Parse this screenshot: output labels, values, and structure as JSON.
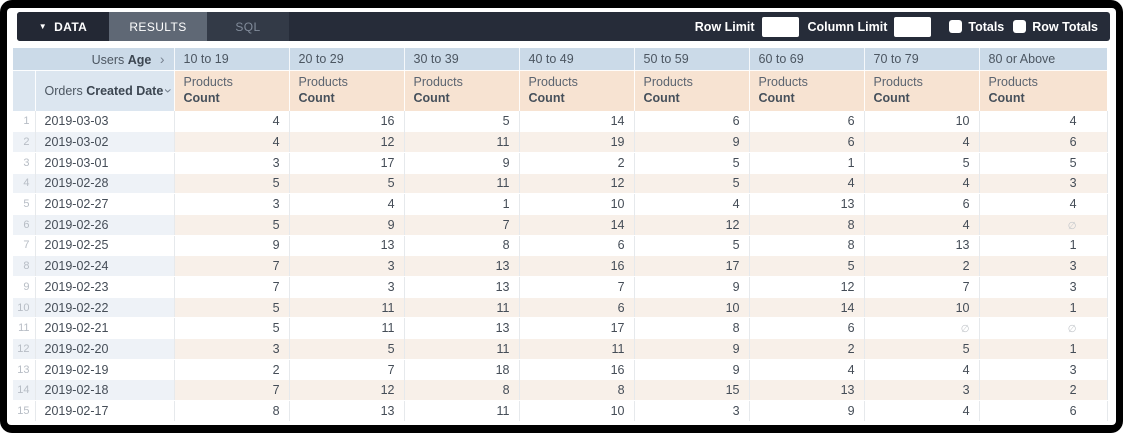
{
  "toolbar": {
    "data_tab": "DATA",
    "results_tab": "RESULTS",
    "sql_tab": "SQL",
    "row_limit_label": "Row Limit",
    "row_limit_value": "",
    "column_limit_label": "Column Limit",
    "column_limit_value": "",
    "totals_label": "Totals",
    "row_totals_label": "Row Totals",
    "totals_checked": false,
    "row_totals_checked": false
  },
  "colors": {
    "toolbar_bg": "#262c39",
    "results_tab_bg": "#5f6875",
    "pivot_header_bg": "#cbdae8",
    "dimension_header_bg": "#dce6f0",
    "measure_header_bg": "#f7e3d2",
    "even_row_dim_bg": "#eef2f7",
    "even_row_val_bg": "#f8f0e9"
  },
  "table": {
    "pivot": {
      "prefix": "Users",
      "field": "Age"
    },
    "row_dim": {
      "prefix": "Orders",
      "field": "Created Date"
    },
    "measure": {
      "prefix": "Products",
      "field": "Count"
    },
    "null_symbol": "∅",
    "age_buckets": [
      "10 to 19",
      "20 to 29",
      "30 to 39",
      "40 to 49",
      "50 to 59",
      "60 to 69",
      "70 to 79",
      "80 or Above"
    ],
    "rows": [
      {
        "n": 1,
        "date": "2019-03-03",
        "values": [
          4,
          16,
          5,
          14,
          6,
          6,
          10,
          4
        ]
      },
      {
        "n": 2,
        "date": "2019-03-02",
        "values": [
          4,
          12,
          11,
          19,
          9,
          6,
          4,
          6
        ]
      },
      {
        "n": 3,
        "date": "2019-03-01",
        "values": [
          3,
          17,
          9,
          2,
          5,
          1,
          5,
          5
        ]
      },
      {
        "n": 4,
        "date": "2019-02-28",
        "values": [
          5,
          5,
          11,
          12,
          5,
          4,
          4,
          3
        ]
      },
      {
        "n": 5,
        "date": "2019-02-27",
        "values": [
          3,
          4,
          1,
          10,
          4,
          13,
          6,
          4
        ]
      },
      {
        "n": 6,
        "date": "2019-02-26",
        "values": [
          5,
          9,
          7,
          14,
          12,
          8,
          4,
          null
        ]
      },
      {
        "n": 7,
        "date": "2019-02-25",
        "values": [
          9,
          13,
          8,
          6,
          5,
          8,
          13,
          1
        ]
      },
      {
        "n": 8,
        "date": "2019-02-24",
        "values": [
          7,
          3,
          13,
          16,
          17,
          5,
          2,
          3
        ]
      },
      {
        "n": 9,
        "date": "2019-02-23",
        "values": [
          7,
          3,
          13,
          7,
          9,
          12,
          7,
          3
        ]
      },
      {
        "n": 10,
        "date": "2019-02-22",
        "values": [
          5,
          11,
          11,
          6,
          10,
          14,
          10,
          1
        ]
      },
      {
        "n": 11,
        "date": "2019-02-21",
        "values": [
          5,
          11,
          13,
          17,
          8,
          6,
          null,
          null
        ]
      },
      {
        "n": 12,
        "date": "2019-02-20",
        "values": [
          3,
          5,
          11,
          11,
          9,
          2,
          5,
          1
        ]
      },
      {
        "n": 13,
        "date": "2019-02-19",
        "values": [
          2,
          7,
          18,
          16,
          9,
          4,
          4,
          3
        ]
      },
      {
        "n": 14,
        "date": "2019-02-18",
        "values": [
          7,
          12,
          8,
          8,
          15,
          13,
          3,
          2
        ]
      },
      {
        "n": 15,
        "date": "2019-02-17",
        "values": [
          8,
          13,
          11,
          10,
          3,
          9,
          4,
          6
        ]
      }
    ]
  }
}
